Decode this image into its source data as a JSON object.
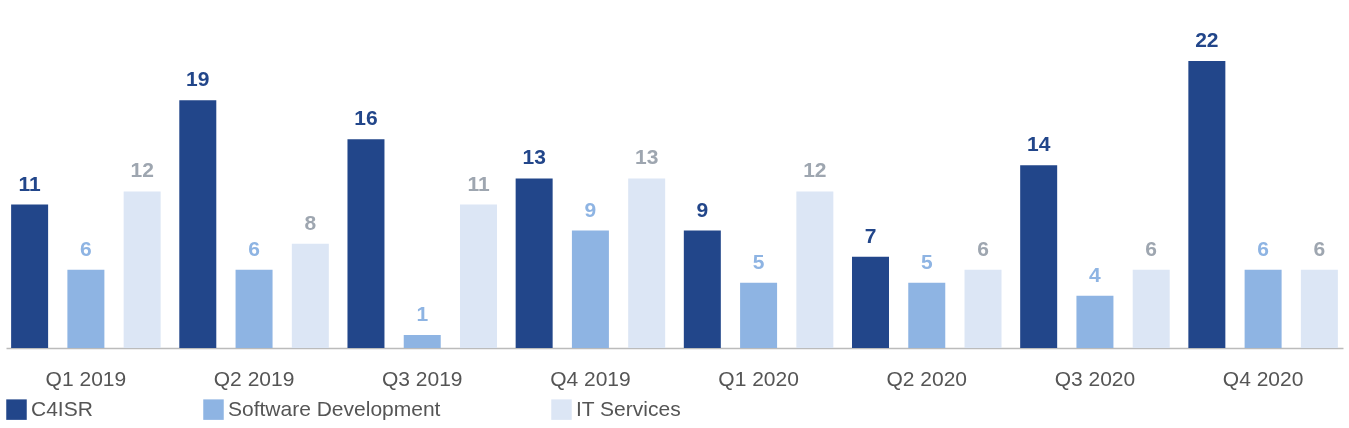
{
  "chart_data": {
    "type": "bar",
    "categories": [
      "Q1 2019",
      "Q2 2019",
      "Q3 2019",
      "Q4 2019",
      "Q1 2020",
      "Q2 2020",
      "Q3 2020",
      "Q4 2020"
    ],
    "series": [
      {
        "name": "C4ISR",
        "color": "#22468a",
        "values": [
          11,
          19,
          16,
          13,
          9,
          7,
          14,
          22
        ]
      },
      {
        "name": "Software Development",
        "color": "#8eb4e3",
        "values": [
          6,
          6,
          1,
          9,
          5,
          5,
          4,
          6
        ]
      },
      {
        "name": "IT Services",
        "color": "#dce6f5",
        "values": [
          12,
          8,
          11,
          13,
          12,
          6,
          6,
          6
        ]
      }
    ],
    "data_labels": true,
    "grid": false,
    "legend": "bottom"
  }
}
